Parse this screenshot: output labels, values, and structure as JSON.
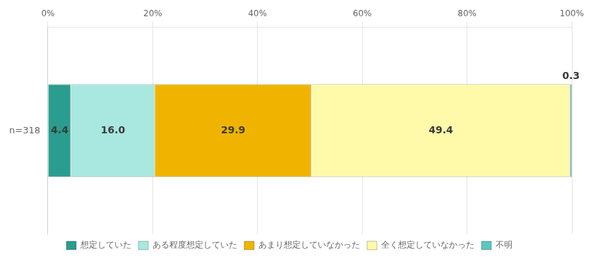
{
  "chart_data": {
    "type": "bar",
    "orientation": "horizontal",
    "stacked": true,
    "categories": [
      "n=318"
    ],
    "series": [
      {
        "name": "想定していた",
        "color": "#2a9d8f",
        "values": [
          4.4
        ]
      },
      {
        "name": "ある程度想定していた",
        "color": "#a8e8e0",
        "values": [
          16.0
        ],
        "value_labels": [
          "16.0"
        ]
      },
      {
        "name": "あまり想定していなかった",
        "color": "#f0b400",
        "values": [
          29.9
        ]
      },
      {
        "name": "全く想定していなかった",
        "color": "#fffaaa",
        "values": [
          49.4
        ]
      },
      {
        "name": "不明",
        "color": "#5bc8c0",
        "values": [
          0.3
        ]
      }
    ],
    "xlim": [
      0,
      100
    ],
    "xticks": [
      {
        "value": 0,
        "label": "0%"
      },
      {
        "value": 20,
        "label": "20%"
      },
      {
        "value": 40,
        "label": "40%"
      },
      {
        "value": 60,
        "label": "60%"
      },
      {
        "value": 80,
        "label": "80%"
      },
      {
        "value": 100,
        "label": "100%"
      }
    ],
    "grid": true,
    "data_labels": true,
    "legend": "bottom"
  }
}
